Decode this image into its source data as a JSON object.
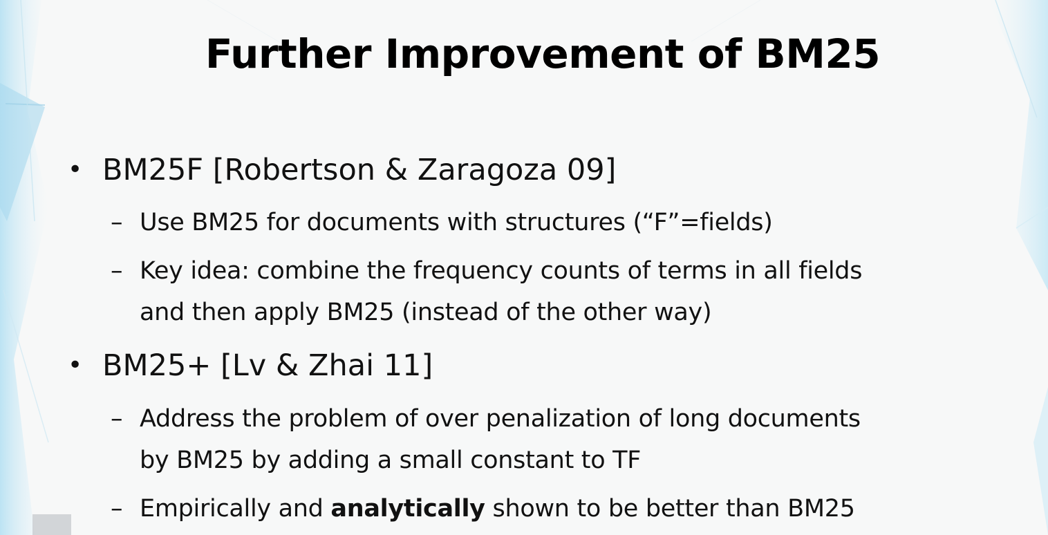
{
  "slide": {
    "title": "Further Improvement of BM25",
    "bullets": [
      {
        "text": "BM25F [Robertson & Zaragoza 09]",
        "subs": [
          {
            "lines": [
              "Use BM25 for documents with structures (“F”=fields)"
            ]
          },
          {
            "lines": [
              "Key idea: combine the frequency counts of terms in all fields",
              "and then apply BM25 (instead of the other way)"
            ]
          }
        ]
      },
      {
        "text": "BM25+ [Lv & Zhai 11]",
        "subs": [
          {
            "lines": [
              "Address the problem of over penalization of long documents",
              "by BM25 by adding a small constant to TF"
            ]
          },
          {
            "before": "Empirically and ",
            "bold": "analytically",
            "after": " shown to be better than BM25"
          }
        ]
      }
    ]
  },
  "theme": {
    "background": "#f7f8f8",
    "text_color": "#111111",
    "accent_light_blue": "#bfe3f2"
  }
}
